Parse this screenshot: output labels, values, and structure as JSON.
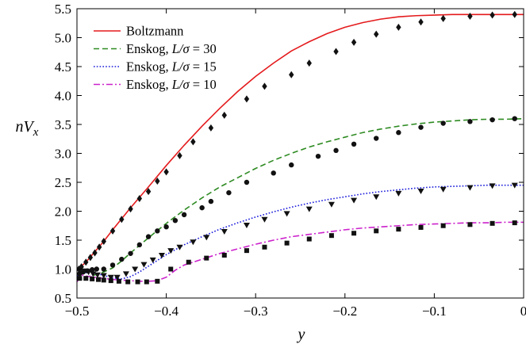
{
  "chart_data": {
    "type": "line",
    "xlabel": "y",
    "ylabel": "nV_x",
    "xlim": [
      -0.5,
      0
    ],
    "ylim": [
      0.5,
      5.5
    ],
    "xticks": [
      -0.5,
      -0.4,
      -0.3,
      -0.2,
      -0.1,
      0
    ],
    "xtick_labels": [
      "−0.5",
      "−0.4",
      "−0.3",
      "−0.2",
      "−0.1",
      "0"
    ],
    "yticks": [
      0.5,
      1.0,
      1.5,
      2.0,
      2.5,
      3.0,
      3.5,
      4.0,
      4.5,
      5.0,
      5.5
    ],
    "ytick_labels": [
      "0.5",
      "1.0",
      "1.5",
      "2.0",
      "2.5",
      "3.0",
      "3.5",
      "4.0",
      "4.5",
      "5.0",
      "5.5"
    ],
    "grid": false,
    "legend_position": "top-left",
    "series": [
      {
        "name": "Boltzmann",
        "color": "#e41a1c",
        "line_style": "solid",
        "marker": "diamond",
        "x": [
          -0.5,
          -0.49,
          -0.48,
          -0.47,
          -0.46,
          -0.45,
          -0.44,
          -0.42,
          -0.4,
          -0.38,
          -0.36,
          -0.34,
          -0.32,
          -0.3,
          -0.28,
          -0.26,
          -0.24,
          -0.22,
          -0.2,
          -0.18,
          -0.16,
          -0.14,
          -0.12,
          -0.1,
          -0.08,
          -0.06,
          -0.04,
          -0.02,
          0.0
        ],
        "y": [
          0.98,
          1.12,
          1.3,
          1.48,
          1.68,
          1.87,
          2.06,
          2.42,
          2.79,
          3.14,
          3.47,
          3.78,
          4.07,
          4.33,
          4.56,
          4.77,
          4.93,
          5.07,
          5.18,
          5.26,
          5.32,
          5.36,
          5.38,
          5.39,
          5.4,
          5.4,
          5.4,
          5.4,
          5.4
        ],
        "marker_x": [
          -0.498,
          -0.495,
          -0.49,
          -0.485,
          -0.48,
          -0.475,
          -0.47,
          -0.46,
          -0.45,
          -0.44,
          -0.43,
          -0.42,
          -0.41,
          -0.4,
          -0.385,
          -0.37,
          -0.35,
          -0.335,
          -0.31,
          -0.29,
          -0.26,
          -0.24,
          -0.21,
          -0.19,
          -0.165,
          -0.14,
          -0.115,
          -0.09,
          -0.06,
          -0.035,
          -0.01
        ],
        "marker_y": [
          1.0,
          1.04,
          1.12,
          1.2,
          1.28,
          1.38,
          1.48,
          1.66,
          1.86,
          2.04,
          2.22,
          2.34,
          2.52,
          2.68,
          2.96,
          3.2,
          3.44,
          3.66,
          3.94,
          4.16,
          4.36,
          4.56,
          4.76,
          4.92,
          5.06,
          5.18,
          5.27,
          5.33,
          5.37,
          5.39,
          5.4
        ]
      },
      {
        "name": "Enskog, L/σ = 30",
        "color": "#2e8b22",
        "line_style": "dashed",
        "marker": "circle",
        "x": [
          -0.5,
          -0.49,
          -0.48,
          -0.47,
          -0.46,
          -0.45,
          -0.44,
          -0.42,
          -0.4,
          -0.38,
          -0.36,
          -0.34,
          -0.32,
          -0.3,
          -0.28,
          -0.26,
          -0.24,
          -0.22,
          -0.2,
          -0.18,
          -0.16,
          -0.14,
          -0.12,
          -0.1,
          -0.08,
          -0.06,
          -0.04,
          -0.02,
          0.0
        ],
        "y": [
          0.8,
          0.86,
          0.9,
          0.95,
          1.02,
          1.14,
          1.28,
          1.54,
          1.79,
          2.02,
          2.23,
          2.42,
          2.58,
          2.74,
          2.88,
          3.0,
          3.11,
          3.2,
          3.28,
          3.36,
          3.42,
          3.47,
          3.51,
          3.54,
          3.56,
          3.58,
          3.59,
          3.59,
          3.6
        ],
        "marker_x": [
          -0.497,
          -0.493,
          -0.488,
          -0.483,
          -0.478,
          -0.47,
          -0.46,
          -0.45,
          -0.44,
          -0.43,
          -0.42,
          -0.41,
          -0.4,
          -0.39,
          -0.38,
          -0.36,
          -0.35,
          -0.33,
          -0.31,
          -0.28,
          -0.26,
          -0.23,
          -0.21,
          -0.19,
          -0.165,
          -0.14,
          -0.115,
          -0.09,
          -0.06,
          -0.035,
          -0.01
        ],
        "marker_y": [
          0.92,
          0.95,
          0.97,
          0.99,
          1.0,
          1.0,
          1.07,
          1.17,
          1.27,
          1.42,
          1.56,
          1.66,
          1.73,
          1.84,
          1.94,
          2.06,
          2.17,
          2.32,
          2.5,
          2.66,
          2.8,
          2.95,
          3.05,
          3.16,
          3.26,
          3.36,
          3.45,
          3.52,
          3.55,
          3.58,
          3.6
        ]
      },
      {
        "name": "Enskog, L/σ = 15",
        "color": "#1a1adc",
        "line_style": "dotted",
        "marker": "triangle-down",
        "x": [
          -0.5,
          -0.49,
          -0.48,
          -0.47,
          -0.46,
          -0.45,
          -0.44,
          -0.43,
          -0.42,
          -0.41,
          -0.4,
          -0.38,
          -0.36,
          -0.34,
          -0.32,
          -0.3,
          -0.28,
          -0.26,
          -0.24,
          -0.22,
          -0.2,
          -0.18,
          -0.16,
          -0.14,
          -0.12,
          -0.1,
          -0.08,
          -0.06,
          -0.04,
          -0.02,
          0.0
        ],
        "y": [
          0.88,
          0.94,
          0.93,
          0.89,
          0.85,
          0.83,
          0.87,
          0.95,
          1.05,
          1.15,
          1.25,
          1.42,
          1.56,
          1.69,
          1.8,
          1.9,
          1.99,
          2.07,
          2.14,
          2.2,
          2.25,
          2.3,
          2.34,
          2.37,
          2.4,
          2.42,
          2.43,
          2.44,
          2.45,
          2.45,
          2.45
        ],
        "marker_x": [
          -0.497,
          -0.492,
          -0.487,
          -0.482,
          -0.477,
          -0.47,
          -0.462,
          -0.455,
          -0.445,
          -0.435,
          -0.425,
          -0.415,
          -0.405,
          -0.395,
          -0.385,
          -0.37,
          -0.355,
          -0.335,
          -0.31,
          -0.29,
          -0.265,
          -0.24,
          -0.215,
          -0.19,
          -0.165,
          -0.14,
          -0.115,
          -0.09,
          -0.06,
          -0.035,
          -0.01
        ],
        "marker_y": [
          0.98,
          0.97,
          0.95,
          0.92,
          0.9,
          0.89,
          0.86,
          0.86,
          0.92,
          1.0,
          1.08,
          1.16,
          1.24,
          1.32,
          1.38,
          1.47,
          1.55,
          1.65,
          1.76,
          1.86,
          1.96,
          2.04,
          2.12,
          2.19,
          2.25,
          2.31,
          2.35,
          2.38,
          2.41,
          2.44,
          2.45
        ]
      },
      {
        "name": "Enskog, L/σ = 10",
        "color": "#cc22cc",
        "line_style": "dashdot",
        "marker": "square",
        "x": [
          -0.5,
          -0.495,
          -0.49,
          -0.48,
          -0.47,
          -0.46,
          -0.45,
          -0.44,
          -0.43,
          -0.42,
          -0.41,
          -0.4,
          -0.39,
          -0.38,
          -0.36,
          -0.34,
          -0.32,
          -0.3,
          -0.28,
          -0.26,
          -0.24,
          -0.22,
          -0.2,
          -0.18,
          -0.16,
          -0.14,
          -0.12,
          -0.1,
          -0.08,
          -0.06,
          -0.04,
          -0.02,
          0.0
        ],
        "y": [
          0.78,
          0.9,
          0.88,
          0.86,
          0.84,
          0.82,
          0.81,
          0.8,
          0.79,
          0.79,
          0.8,
          0.86,
          0.98,
          1.07,
          1.17,
          1.27,
          1.35,
          1.43,
          1.5,
          1.56,
          1.6,
          1.64,
          1.68,
          1.71,
          1.73,
          1.75,
          1.77,
          1.78,
          1.79,
          1.8,
          1.8,
          1.81,
          1.81
        ],
        "marker_x": [
          -0.497,
          -0.49,
          -0.483,
          -0.476,
          -0.47,
          -0.462,
          -0.453,
          -0.443,
          -0.432,
          -0.422,
          -0.41,
          -0.395,
          -0.375,
          -0.355,
          -0.335,
          -0.31,
          -0.29,
          -0.265,
          -0.24,
          -0.215,
          -0.19,
          -0.165,
          -0.14,
          -0.115,
          -0.09,
          -0.06,
          -0.035,
          -0.01
        ],
        "marker_y": [
          0.84,
          0.84,
          0.83,
          0.82,
          0.81,
          0.8,
          0.79,
          0.78,
          0.78,
          0.78,
          0.79,
          1.0,
          1.12,
          1.19,
          1.24,
          1.32,
          1.38,
          1.45,
          1.52,
          1.58,
          1.62,
          1.66,
          1.69,
          1.72,
          1.75,
          1.77,
          1.79,
          1.8
        ]
      }
    ]
  }
}
